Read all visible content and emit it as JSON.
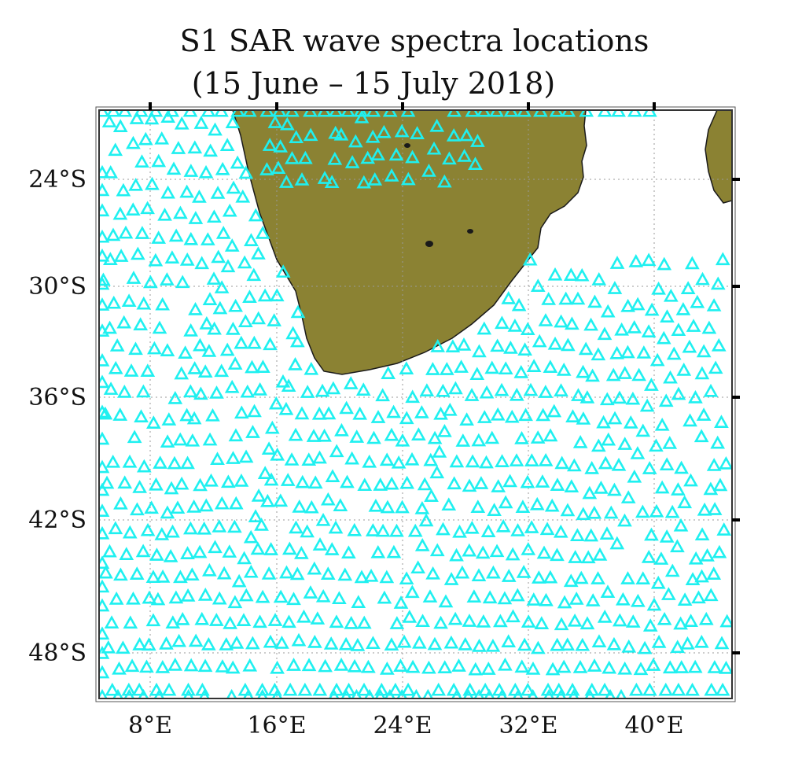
{
  "title_line1": "S1 SAR wave spectra locations",
  "title_line2": "(15 June – 15 July 2018)",
  "map": {
    "projection": "Mercator",
    "lon_range": [
      3,
      46
    ],
    "lat_range": [
      -20.8,
      -51.5
    ],
    "land_color": "#8b8233",
    "marker_color": "#1ff0f0",
    "marker_shape": "triangle-open",
    "grid": "dotted",
    "lon_ticks": [
      "8°E",
      "16°E",
      "24°E",
      "32°E",
      "40°E"
    ],
    "lat_ticks": [
      "24°S",
      "30°S",
      "36°S",
      "42°S",
      "48°S"
    ]
  }
}
